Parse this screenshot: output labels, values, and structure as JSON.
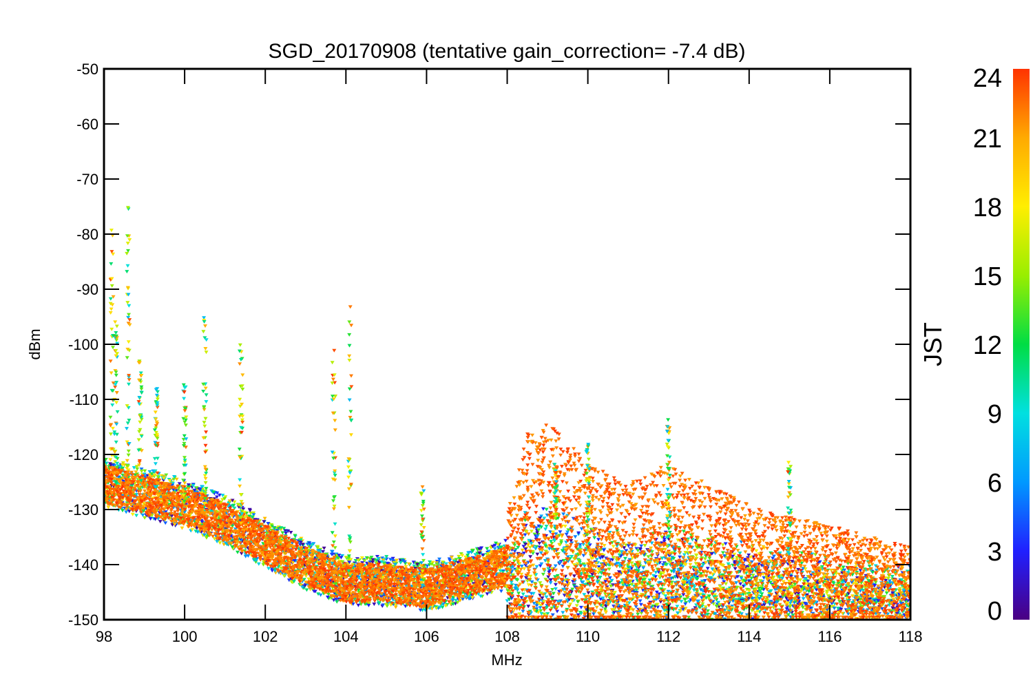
{
  "chart_data": {
    "type": "scatter",
    "title": "SGD_20170908 (tentative gain_correction= -7.4 dB)",
    "xlabel": "MHz",
    "ylabel": "dBm",
    "xlim": [
      98,
      118
    ],
    "ylim": [
      -150,
      -50
    ],
    "x_ticks": [
      "98",
      "100",
      "102",
      "104",
      "106",
      "108",
      "110",
      "112",
      "114",
      "116",
      "118"
    ],
    "y_ticks": [
      "-50",
      "-60",
      "-70",
      "-80",
      "-90",
      "-100",
      "-110",
      "-120",
      "-130",
      "-140",
      "-150"
    ],
    "grid": false,
    "colorbar": {
      "label": "JST",
      "range": [
        0,
        24
      ],
      "ticks": [
        "0",
        "3",
        "6",
        "9",
        "12",
        "15",
        "18",
        "21",
        "24"
      ],
      "colormap": "rainbow",
      "colors": [
        "#4b0082",
        "#2020ff",
        "#0099ff",
        "#00e0e0",
        "#00dd44",
        "#99ee00",
        "#ffee00",
        "#ffaa00",
        "#ff3300"
      ]
    },
    "series": [
      {
        "description": "noise floor (dense points, JST ~24)",
        "points": [
          [
            98,
            -125
          ],
          [
            99,
            -127
          ],
          [
            100,
            -129
          ],
          [
            101,
            -132
          ],
          [
            102,
            -136
          ],
          [
            103,
            -140
          ],
          [
            104,
            -143
          ],
          [
            105,
            -143
          ],
          [
            106,
            -144
          ],
          [
            107,
            -142
          ],
          [
            108,
            -140
          ],
          [
            108.5,
            -132
          ],
          [
            109,
            -131
          ],
          [
            109.5,
            -133
          ],
          [
            110,
            -135
          ],
          [
            111,
            -137
          ],
          [
            112,
            -135
          ],
          [
            113,
            -137
          ],
          [
            114,
            -139
          ],
          [
            115,
            -140
          ],
          [
            116,
            -141
          ],
          [
            117,
            -142
          ],
          [
            118,
            -143
          ]
        ]
      },
      {
        "description": "peaks",
        "points": [
          [
            98.2,
            -77
          ],
          [
            98.6,
            -75
          ],
          [
            98.3,
            -95
          ],
          [
            98.9,
            -103
          ],
          [
            99.3,
            -108
          ],
          [
            100,
            -107
          ],
          [
            100.5,
            -95
          ],
          [
            101.4,
            -100
          ],
          [
            103.7,
            -100
          ],
          [
            104.1,
            -92
          ],
          [
            105.9,
            -125
          ],
          [
            109.2,
            -121
          ],
          [
            110,
            -116
          ],
          [
            112,
            -112
          ],
          [
            115,
            -121
          ]
        ]
      }
    ]
  }
}
